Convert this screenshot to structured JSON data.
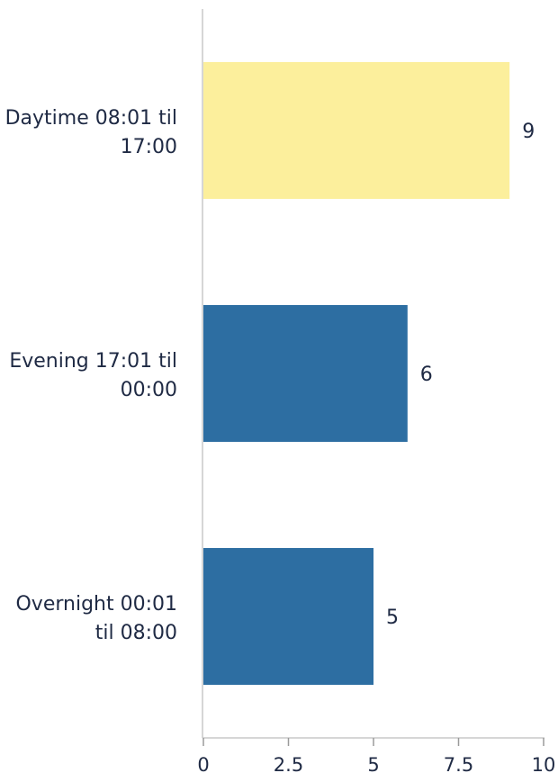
{
  "chart_data": {
    "type": "bar",
    "orientation": "horizontal",
    "categories": [
      "Daytime 08:01 til 17:00",
      "Evening 17:01 til 00:00",
      "Overnight 00:01 til 08:00"
    ],
    "category_lines": [
      [
        "Daytime 08:01 til",
        "17:00"
      ],
      [
        "Evening 17:01 til",
        "00:00"
      ],
      [
        "Overnight 00:01",
        "til 08:00"
      ]
    ],
    "values": [
      9,
      6,
      5
    ],
    "value_labels": [
      "9",
      "6",
      "5"
    ],
    "colors": [
      "#fcef9c",
      "#2d6ea2",
      "#2d6ea2"
    ],
    "xlim": [
      0,
      10
    ],
    "xticks": [
      0,
      2.5,
      5,
      7.5,
      10
    ],
    "xtick_labels": [
      "0",
      "2.5",
      "5",
      "7.5",
      "10"
    ],
    "title": "",
    "xlabel": "",
    "ylabel": "",
    "grid": false,
    "legend": "none"
  }
}
